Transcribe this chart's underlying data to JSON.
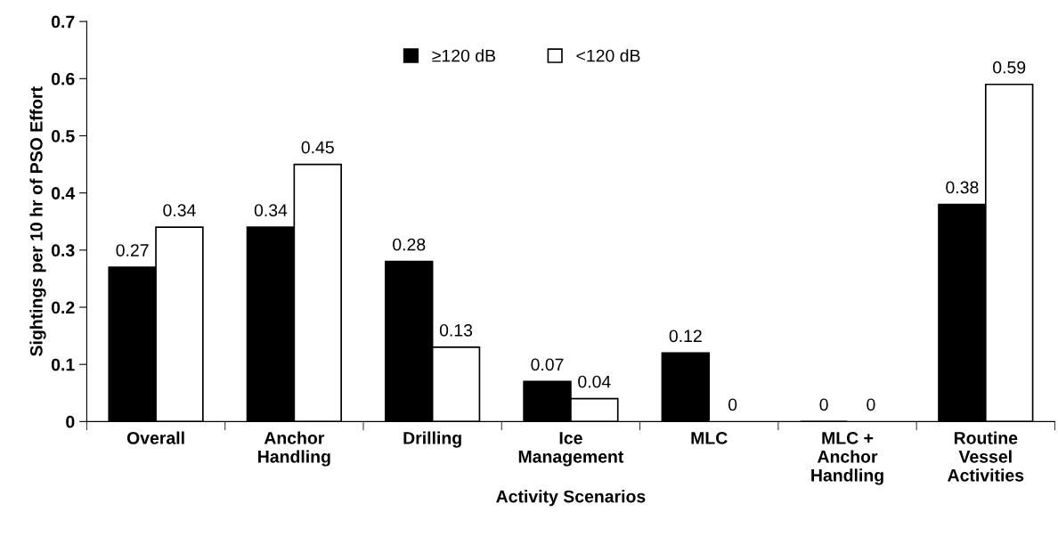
{
  "chart_data": {
    "type": "bar",
    "xlabel": "Activity Scenarios",
    "ylabel": "Sightings per 10 hr of PSO Effort",
    "categories": [
      "Overall",
      "Anchor\nHandling",
      "Drilling",
      "Ice\nManagement",
      "MLC",
      "MLC +\nAnchor\nHandling",
      "Routine\nVessel\nActivities"
    ],
    "series": [
      {
        "name": "≥120 dB",
        "color": "#000000",
        "values": [
          0.27,
          0.34,
          0.28,
          0.07,
          0.12,
          0,
          0.38
        ]
      },
      {
        "name": "<120 dB",
        "color": "#ffffff",
        "values": [
          0.34,
          0.45,
          0.13,
          0.04,
          0,
          0,
          0.59
        ]
      }
    ],
    "ylim": [
      0,
      0.7
    ],
    "yticks": [
      0,
      0.1,
      0.2,
      0.3,
      0.4,
      0.5,
      0.6,
      0.7
    ],
    "data_labels": true,
    "grid": false,
    "legend": "top"
  }
}
